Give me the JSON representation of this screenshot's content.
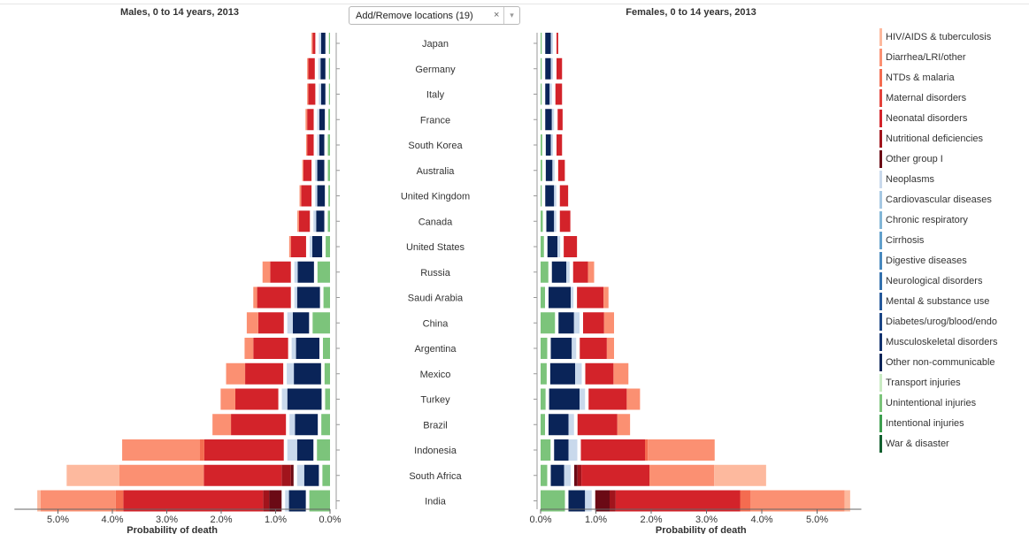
{
  "header": {
    "male_title": "Males, 0 to 14 years, 2013",
    "female_title": "Females, 0 to 14 years, 2013",
    "locations_button": "Add/Remove locations (19)",
    "clear_glyph": "×",
    "dropdown_glyph": "▾"
  },
  "causes": [
    {
      "name": "HIV/AIDS & tuberculosis",
      "color": "#fdb99e"
    },
    {
      "name": "Diarrhea/LRI/other",
      "color": "#fb9072"
    },
    {
      "name": "NTDs & malaria",
      "color": "#f46c50"
    },
    {
      "name": "Maternal disorders",
      "color": "#e4423a"
    },
    {
      "name": "Neonatal disorders",
      "color": "#d3232a"
    },
    {
      "name": "Nutritional deficiencies",
      "color": "#a1141c"
    },
    {
      "name": "Other group I",
      "color": "#6b0a15"
    },
    {
      "name": "Neoplasms",
      "color": "#c9d9ec"
    },
    {
      "name": "Cardiovascular diseases",
      "color": "#a6c8e3"
    },
    {
      "name": "Chronic respiratory",
      "color": "#82b6d6"
    },
    {
      "name": "Cirrhosis",
      "color": "#62a0cb"
    },
    {
      "name": "Digestive diseases",
      "color": "#4888be"
    },
    {
      "name": "Neurological disorders",
      "color": "#3370ad"
    },
    {
      "name": "Mental & substance use",
      "color": "#25599b"
    },
    {
      "name": "Diabetes/urog/blood/endo",
      "color": "#1a4585"
    },
    {
      "name": "Musculoskeletal disorders",
      "color": "#12336f"
    },
    {
      "name": "Other non-communicable",
      "color": "#0a2458"
    },
    {
      "name": "Transport injuries",
      "color": "#c9ebc3"
    },
    {
      "name": "Unintentional injuries",
      "color": "#7cc47b"
    },
    {
      "name": "Intentional injuries",
      "color": "#3d9f4f"
    },
    {
      "name": "War & disaster",
      "color": "#12602f"
    }
  ],
  "chart_data": {
    "type": "bar",
    "orientation": "horizontal",
    "stacked": true,
    "x_unit": "%",
    "categories": [
      "Japan",
      "Germany",
      "Italy",
      "France",
      "South Korea",
      "Australia",
      "United Kingdom",
      "Canada",
      "United States",
      "Russia",
      "Saudi Arabia",
      "China",
      "Argentina",
      "Mexico",
      "Turkey",
      "Brazil",
      "Indonesia",
      "South Africa",
      "India"
    ],
    "stack_groups": [
      {
        "name": "communicable",
        "order": [
          "Other group I",
          "Nutritional deficiencies",
          "Neonatal disorders",
          "Maternal disorders",
          "NTDs & malaria",
          "Diarrhea/LRI/other",
          "HIV/AIDS & tuberculosis"
        ]
      },
      {
        "name": "non-communicable",
        "order": [
          "Other non-communicable",
          "Musculoskeletal disorders",
          "Diabetes/urog/blood/endo",
          "Mental & substance use",
          "Neurological disorders",
          "Digestive diseases",
          "Cirrhosis",
          "Chronic respiratory",
          "Cardiovascular diseases",
          "Neoplasms"
        ]
      },
      {
        "name": "injuries",
        "order": [
          "War & disaster",
          "Intentional injuries",
          "Unintentional injuries",
          "Transport injuries"
        ]
      }
    ],
    "panels": [
      {
        "title": "Males, 0 to 14 years, 2013",
        "xlabel": "Probability of death",
        "xlim": [
          0,
          5.8
        ],
        "xticks": [
          "5.0%",
          "4.0%",
          "3.0%",
          "2.0%",
          "1.0%",
          "0.0%"
        ],
        "direction": "left",
        "values": {
          "communicable": [
            {
              "Neonatal disorders": 0.05,
              "Diarrhea/LRI/other": 0.02
            },
            {
              "Neonatal disorders": 0.12,
              "Diarrhea/LRI/other": 0.02
            },
            {
              "Neonatal disorders": 0.13,
              "Diarrhea/LRI/other": 0.02
            },
            {
              "Neonatal disorders": 0.12,
              "Diarrhea/LRI/other": 0.03
            },
            {
              "Neonatal disorders": 0.12,
              "Diarrhea/LRI/other": 0.02
            },
            {
              "Neonatal disorders": 0.15,
              "Diarrhea/LRI/other": 0.02
            },
            {
              "Neonatal disorders": 0.19,
              "Diarrhea/LRI/other": 0.03
            },
            {
              "Neonatal disorders": 0.2,
              "Diarrhea/LRI/other": 0.03
            },
            {
              "Neonatal disorders": 0.28,
              "Diarrhea/LRI/other": 0.03
            },
            {
              "Neonatal disorders": 0.38,
              "Diarrhea/LRI/other": 0.14
            },
            {
              "Neonatal disorders": 0.62,
              "Diarrhea/LRI/other": 0.07
            },
            {
              "Neonatal disorders": 0.47,
              "Diarrhea/LRI/other": 0.21
            },
            {
              "Neonatal disorders": 0.64,
              "Diarrhea/LRI/other": 0.16
            },
            {
              "Neonatal disorders": 0.7,
              "Diarrhea/LRI/other": 0.35
            },
            {
              "Neonatal disorders": 0.79,
              "Diarrhea/LRI/other": 0.27
            },
            {
              "Neonatal disorders": 1.01,
              "Diarrhea/LRI/other": 0.34
            },
            {
              "Neonatal disorders": 1.46,
              "NTDs & malaria": 0.08,
              "Diarrhea/LRI/other": 1.43
            },
            {
              "Other group I": 0.05,
              "Nutritional deficiencies": 0.17,
              "Neonatal disorders": 1.43,
              "Diarrhea/LRI/other": 1.55,
              "HIV/AIDS & tuberculosis": 0.97
            },
            {
              "Other group I": 0.23,
              "Nutritional deficiencies": 0.11,
              "Neonatal disorders": 2.57,
              "NTDs & malaria": 0.14,
              "Diarrhea/LRI/other": 1.38,
              "HIV/AIDS & tuberculosis": 0.06
            }
          ],
          "non-communicable": [
            {
              "Other non-communicable": 0.08,
              "Neoplasms": 0.04
            },
            {
              "Other non-communicable": 0.09,
              "Neoplasms": 0.04
            },
            {
              "Other non-communicable": 0.08,
              "Neoplasms": 0.04
            },
            {
              "Other non-communicable": 0.1,
              "Neoplasms": 0.04
            },
            {
              "Other non-communicable": 0.09,
              "Neoplasms": 0.04
            },
            {
              "Other non-communicable": 0.13,
              "Neoplasms": 0.04
            },
            {
              "Other non-communicable": 0.14,
              "Neoplasms": 0.04
            },
            {
              "Other non-communicable": 0.15,
              "Neoplasms": 0.05
            },
            {
              "Other non-communicable": 0.18,
              "Neoplasms": 0.05
            },
            {
              "Other non-communicable": 0.3,
              "Neoplasms": 0.06
            },
            {
              "Other non-communicable": 0.42,
              "Neoplasms": 0.05
            },
            {
              "Other non-communicable": 0.3,
              "Neoplasms": 0.1
            },
            {
              "Other non-communicable": 0.43,
              "Neoplasms": 0.08
            },
            {
              "Other non-communicable": 0.5,
              "Neoplasms": 0.13
            },
            {
              "Other non-communicable": 0.63,
              "Neoplasms": 0.1
            },
            {
              "Other non-communicable": 0.42,
              "Neoplasms": 0.1
            },
            {
              "Other non-communicable": 0.3,
              "Neoplasms": 0.18
            },
            {
              "Other non-communicable": 0.27,
              "Neoplasms": 0.13
            },
            {
              "Other non-communicable": 0.31,
              "Neoplasms": 0.07
            }
          ],
          "injuries": [
            {
              "Unintentional injuries": 0.02
            },
            {
              "Unintentional injuries": 0.02
            },
            {
              "Unintentional injuries": 0.02
            },
            {
              "Unintentional injuries": 0.03
            },
            {
              "Unintentional injuries": 0.04
            },
            {
              "Unintentional injuries": 0.04
            },
            {
              "Unintentional injuries": 0.03
            },
            {
              "Unintentional injuries": 0.04
            },
            {
              "Unintentional injuries": 0.08
            },
            {
              "Unintentional injuries": 0.23
            },
            {
              "Unintentional injuries": 0.12
            },
            {
              "Unintentional injuries": 0.32
            },
            {
              "Unintentional injuries": 0.13
            },
            {
              "Unintentional injuries": 0.1
            },
            {
              "Unintentional injuries": 0.09
            },
            {
              "Unintentional injuries": 0.16
            },
            {
              "Unintentional injuries": 0.24
            },
            {
              "Unintentional injuries": 0.14
            },
            {
              "Unintentional injuries": 0.38
            }
          ]
        }
      },
      {
        "title": "Females, 0 to 14 years, 2013",
        "xlabel": "Probability of death",
        "xlim": [
          0,
          5.8
        ],
        "xticks": [
          "0.0%",
          "1.0%",
          "2.0%",
          "3.0%",
          "4.0%",
          "5.0%"
        ],
        "direction": "right",
        "values": {
          "injuries": [
            {
              "Unintentional injuries": 0.02
            },
            {
              "Unintentional injuries": 0.02
            },
            {
              "Unintentional injuries": 0.02
            },
            {
              "Unintentional injuries": 0.02
            },
            {
              "Unintentional injuries": 0.03
            },
            {
              "Unintentional injuries": 0.03
            },
            {
              "Unintentional injuries": 0.02
            },
            {
              "Unintentional injuries": 0.04
            },
            {
              "Unintentional injuries": 0.06
            },
            {
              "Unintentional injuries": 0.14
            },
            {
              "Unintentional injuries": 0.08
            },
            {
              "Unintentional injuries": 0.26
            },
            {
              "Unintentional injuries": 0.12
            },
            {
              "Unintentional injuries": 0.11
            },
            {
              "Unintentional injuries": 0.09
            },
            {
              "Unintentional injuries": 0.08
            },
            {
              "Unintentional injuries": 0.18
            },
            {
              "Unintentional injuries": 0.12
            },
            {
              "Unintentional injuries": 0.44
            }
          ],
          "non-communicable": [
            {
              "Other non-communicable": 0.1,
              "Neoplasms": 0.04
            },
            {
              "Other non-communicable": 0.1,
              "Neoplasms": 0.04
            },
            {
              "Other non-communicable": 0.08,
              "Neoplasms": 0.04
            },
            {
              "Other non-communicable": 0.12,
              "Neoplasms": 0.04
            },
            {
              "Other non-communicable": 0.09,
              "Neoplasms": 0.04
            },
            {
              "Other non-communicable": 0.12,
              "Neoplasms": 0.04
            },
            {
              "Other non-communicable": 0.16,
              "Neoplasms": 0.04
            },
            {
              "Other non-communicable": 0.14,
              "Neoplasms": 0.04
            },
            {
              "Other non-communicable": 0.18,
              "Neoplasms": 0.05
            },
            {
              "Other non-communicable": 0.26,
              "Neoplasms": 0.06
            },
            {
              "Other non-communicable": 0.4,
              "Neoplasms": 0.05
            },
            {
              "Other non-communicable": 0.28,
              "Neoplasms": 0.1
            },
            {
              "Other non-communicable": 0.38,
              "Neoplasms": 0.08
            },
            {
              "Other non-communicable": 0.45,
              "Neoplasms": 0.12
            },
            {
              "Other non-communicable": 0.55,
              "Neoplasms": 0.1
            },
            {
              "Other non-communicable": 0.36,
              "Neoplasms": 0.1
            },
            {
              "Other non-communicable": 0.26,
              "Neoplasms": 0.16
            },
            {
              "Other non-communicable": 0.24,
              "Neoplasms": 0.12
            },
            {
              "Other non-communicable": 0.3,
              "Neoplasms": 0.12
            }
          ],
          "communicable": [
            {
              "Neonatal disorders": 0.03
            },
            {
              "Neonatal disorders": 0.1
            },
            {
              "Neonatal disorders": 0.12
            },
            {
              "Neonatal disorders": 0.09
            },
            {
              "Neonatal disorders": 0.1
            },
            {
              "Neonatal disorders": 0.12
            },
            {
              "Neonatal disorders": 0.15
            },
            {
              "Neonatal disorders": 0.19
            },
            {
              "Neonatal disorders": 0.24
            },
            {
              "Neonatal disorders": 0.27,
              "Diarrhea/LRI/other": 0.11
            },
            {
              "Neonatal disorders": 0.48,
              "Diarrhea/LRI/other": 0.09
            },
            {
              "Neonatal disorders": 0.38,
              "Diarrhea/LRI/other": 0.18
            },
            {
              "Neonatal disorders": 0.49,
              "Diarrhea/LRI/other": 0.13
            },
            {
              "Neonatal disorders": 0.51,
              "Diarrhea/LRI/other": 0.27
            },
            {
              "Neonatal disorders": 0.69,
              "Diarrhea/LRI/other": 0.24
            },
            {
              "Neonatal disorders": 0.72,
              "Diarrhea/LRI/other": 0.23
            },
            {
              "Neonatal disorders": 1.16,
              "NTDs & malaria": 0.05,
              "Diarrhea/LRI/other": 1.21
            },
            {
              "Other group I": 0.06,
              "Nutritional deficiencies": 0.07,
              "Neonatal disorders": 1.23,
              "Diarrhea/LRI/other": 1.17,
              "HIV/AIDS & tuberculosis": 0.94
            },
            {
              "Other group I": 0.26,
              "Nutritional deficiencies": 0.11,
              "Neonatal disorders": 2.25,
              "NTDs & malaria": 0.19,
              "Diarrhea/LRI/other": 1.7,
              "HIV/AIDS & tuberculosis": 0.1
            }
          ]
        }
      }
    ]
  },
  "legend": {
    "placement": "right"
  }
}
